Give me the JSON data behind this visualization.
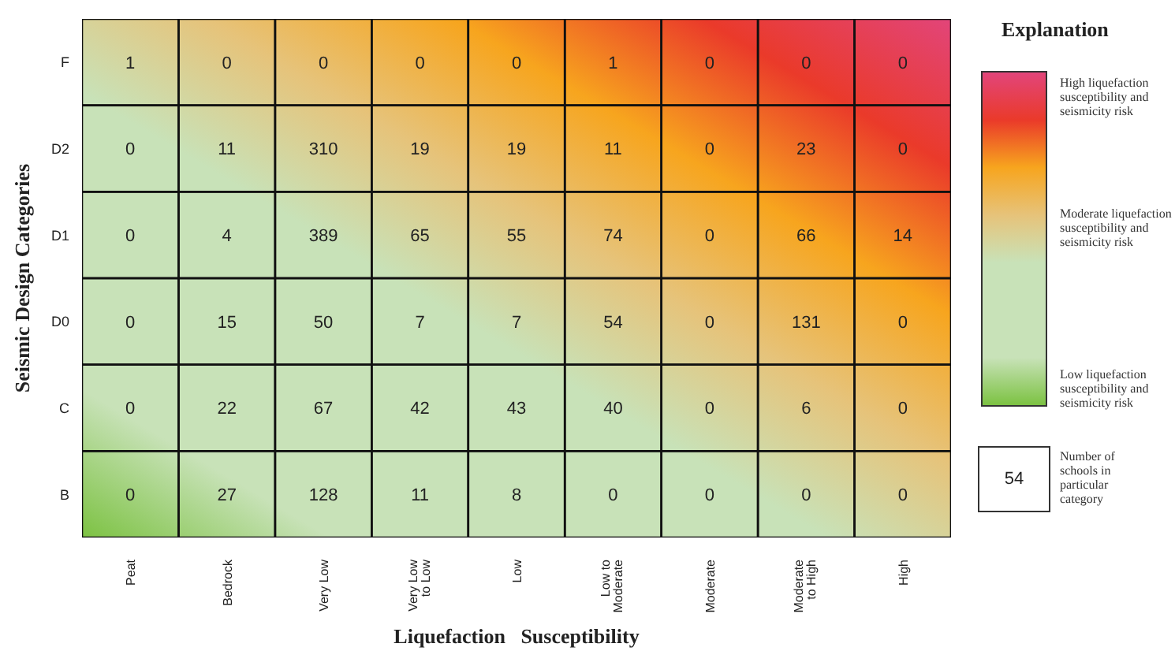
{
  "chart_data": {
    "type": "heatmap",
    "xlabel": "Liquefaction   Susceptibility",
    "ylabel": "Seismic Design Categories",
    "clabel": "Explanation",
    "categories": [
      "Peat",
      "Bedrock",
      "Very Low",
      "Very Low to Low",
      "Low",
      "Low to Moderate",
      "Moderate",
      "Moderate to High",
      "High"
    ],
    "y_categories": [
      "F",
      "D2",
      "D1",
      "D0",
      "C",
      "B"
    ],
    "cells": [
      [
        1,
        0,
        0,
        0,
        0,
        1,
        0,
        0,
        0
      ],
      [
        0,
        11,
        310,
        19,
        19,
        11,
        0,
        23,
        0
      ],
      [
        0,
        4,
        389,
        65,
        55,
        74,
        0,
        66,
        14
      ],
      [
        0,
        15,
        50,
        7,
        7,
        54,
        0,
        131,
        0
      ],
      [
        0,
        22,
        67,
        42,
        43,
        40,
        0,
        6,
        0
      ],
      [
        0,
        27,
        128,
        11,
        8,
        0,
        0,
        0,
        0
      ]
    ],
    "data_labels": true,
    "colors": [
      "#7cc242",
      "#c8e2b8",
      "#c8e2b8",
      "#c8e2b8",
      "#e6c37a",
      "#f7a51e",
      "#ea3a2a",
      "#e2457a"
    ],
    "annotations": [
      "High liquefaction susceptibility and seismicity risk",
      "Moderate liquefaction susceptibility and seismicity risk",
      "Low liquefaction susceptibility and seismicity risk",
      "54",
      "Number of schools in particular category"
    ]
  }
}
